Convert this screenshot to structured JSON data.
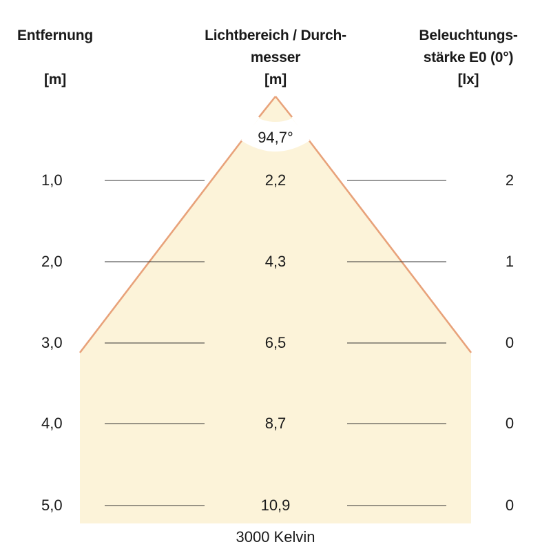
{
  "headers": {
    "distance": {
      "line1": "Entfernung",
      "unit": "[m]"
    },
    "diameter": {
      "line1": "Lichtbereich / Durch-",
      "line2": "messer",
      "unit": "[m]"
    },
    "illuminance": {
      "line1": "Beleuchtungs-",
      "line2": "stärke E0 (0°)",
      "unit": "[lx]"
    }
  },
  "beam_angle": "94,7°",
  "rows": [
    {
      "distance": "1,0",
      "diameter": "2,2",
      "illuminance": "2"
    },
    {
      "distance": "2,0",
      "diameter": "4,3",
      "illuminance": "1"
    },
    {
      "distance": "3,0",
      "diameter": "6,5",
      "illuminance": "0"
    },
    {
      "distance": "4,0",
      "diameter": "8,7",
      "illuminance": "0"
    },
    {
      "distance": "5,0",
      "diameter": "10,9",
      "illuminance": "0"
    }
  ],
  "color_temperature": "3000 Kelvin",
  "colors": {
    "cone_fill": "#fcf3d9",
    "cone_edge": "#e8a27a",
    "row_line": "#333333"
  }
}
